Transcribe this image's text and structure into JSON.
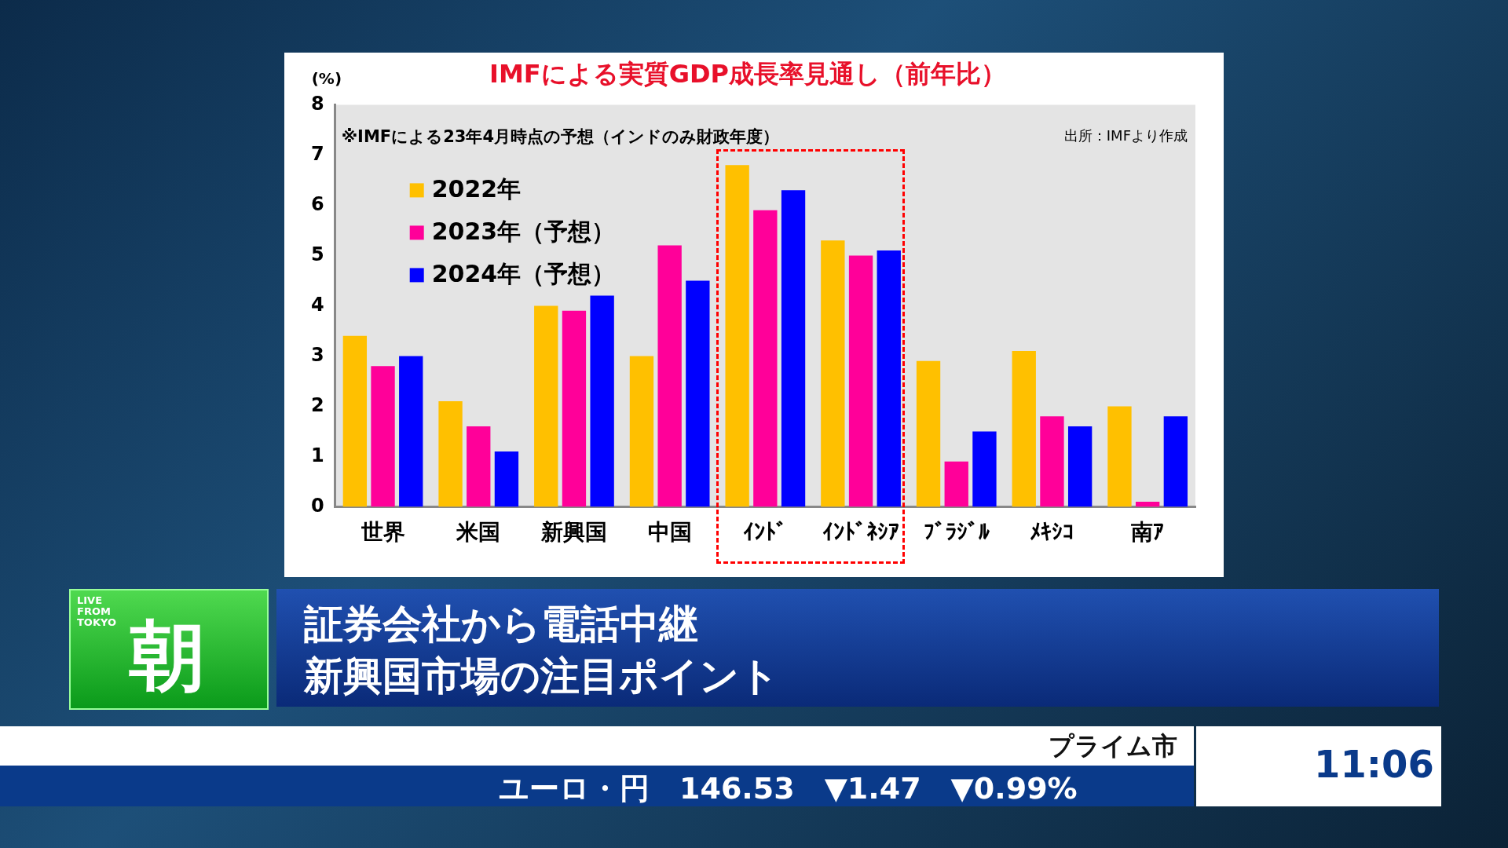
{
  "chart_data": {
    "type": "bar",
    "title": "IMFによる実質GDP成長率見通し（前年比）",
    "ylabel": "(%)",
    "categories": [
      "世界",
      "米国",
      "新興国",
      "中国",
      "ｲﾝﾄﾞ",
      "ｲﾝﾄﾞﾈｼｱ",
      "ﾌﾞﾗｼﾞﾙ",
      "ﾒｷｼｺ",
      "南ｱ"
    ],
    "series": [
      {
        "name": "2022年",
        "color": "#ffc000",
        "values": [
          3.4,
          2.1,
          4.0,
          3.0,
          6.8,
          5.3,
          2.9,
          3.1,
          2.0
        ]
      },
      {
        "name": "2023年（予想）",
        "color": "#ff0099",
        "values": [
          2.8,
          1.6,
          3.9,
          5.2,
          5.9,
          5.0,
          0.9,
          1.8,
          0.1
        ]
      },
      {
        "name": "2024年（予想）",
        "color": "#0000ff",
        "values": [
          3.0,
          1.1,
          4.2,
          4.5,
          6.3,
          5.1,
          1.5,
          1.6,
          1.8
        ]
      }
    ],
    "ylim": [
      0,
      8
    ],
    "yticks": [
      0,
      1,
      2,
      3,
      4,
      5,
      6,
      7,
      8
    ],
    "grid": false,
    "legend": "top left",
    "annotations": [
      "※IMFによる23年4月時点の予想（インドのみ財政年度）",
      "出所：IMFより作成",
      "LIVE FROM TOKYO",
      "朝",
      "証券会社から電話中継",
      "新興国市場の注目ポイント",
      "ユーロ・円　146.53　▼1.47　▼0.99%",
      "プライム市場",
      "11:06"
    ]
  }
}
